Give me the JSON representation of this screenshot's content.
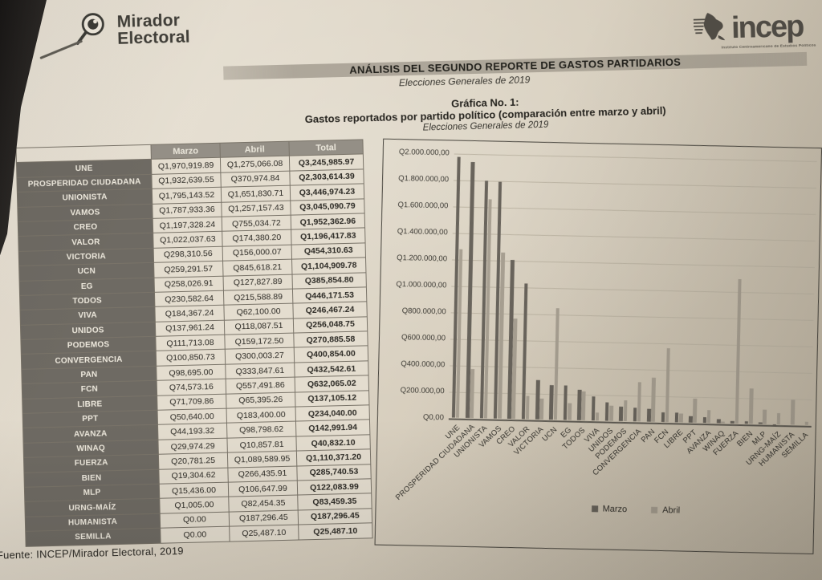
{
  "header": {
    "mirador": {
      "line1": "Mirador",
      "line2": "Electoral"
    },
    "incep": {
      "name": "incep",
      "tagline": "Instituto Centroamericano de Estudios Políticos"
    },
    "title": "ANÁLISIS DEL SEGUNDO REPORTE DE GASTOS PARTIDARIOS",
    "subtitle": "Elecciones Generales de 2019"
  },
  "figure": {
    "number": "Gráfica No. 1:",
    "title": "Gastos reportados por partido político (comparación entre marzo y abril)",
    "subtitle": "Elecciones Generales de 2019"
  },
  "source": "Fuente: INCEP/Mirador Electoral, 2019",
  "icons": {
    "mirador_logo": "magnifier-eye-icon",
    "incep_logo": "central-america-map-icon"
  },
  "colors": {
    "paper": "#ddd5c6",
    "bar_marzo": "#69645c",
    "bar_abril": "#a8a092",
    "table_party_bg": "#6e6a63",
    "table_header_bg": "#948f86"
  },
  "table": {
    "headers": [
      "",
      "Marzo",
      "Abril",
      "Total"
    ],
    "rows": [
      {
        "party": "UNE",
        "marzo": "Q1,970,919.89",
        "abril": "Q1,275,066.08",
        "total": "Q3,245,985.97"
      },
      {
        "party": "PROSPERIDAD CIUDADANA",
        "marzo": "Q1,932,639.55",
        "abril": "Q370,974.84",
        "total": "Q2,303,614.39"
      },
      {
        "party": "UNIONISTA",
        "marzo": "Q1,795,143.52",
        "abril": "Q1,651,830.71",
        "total": "Q3,446,974.23"
      },
      {
        "party": "VAMOS",
        "marzo": "Q1,787,933.36",
        "abril": "Q1,257,157.43",
        "total": "Q3,045,090.79"
      },
      {
        "party": "CREO",
        "marzo": "Q1,197,328.24",
        "abril": "Q755,034.72",
        "total": "Q1,952,362.96"
      },
      {
        "party": "VALOR",
        "marzo": "Q1,022,037.63",
        "abril": "Q174,380.20",
        "total": "Q1,196,417.83"
      },
      {
        "party": "VICTORIA",
        "marzo": "Q298,310.56",
        "abril": "Q156,000.07",
        "total": "Q454,310.63"
      },
      {
        "party": "UCN",
        "marzo": "Q259,291.57",
        "abril": "Q845,618.21",
        "total": "Q1,104,909.78"
      },
      {
        "party": "EG",
        "marzo": "Q258,026.91",
        "abril": "Q127,827.89",
        "total": "Q385,854.80"
      },
      {
        "party": "TODOS",
        "marzo": "Q230,582.64",
        "abril": "Q215,588.89",
        "total": "Q446,171.53"
      },
      {
        "party": "VIVA",
        "marzo": "Q184,367.24",
        "abril": "Q62,100.00",
        "total": "Q246,467.24"
      },
      {
        "party": "UNIDOS",
        "marzo": "Q137,961.24",
        "abril": "Q118,087.51",
        "total": "Q256,048.75"
      },
      {
        "party": "PODEMOS",
        "marzo": "Q111,713.08",
        "abril": "Q159,172.50",
        "total": "Q270,885.58"
      },
      {
        "party": "CONVERGENCIA",
        "marzo": "Q100,850.73",
        "abril": "Q300,003.27",
        "total": "Q400,854.00"
      },
      {
        "party": "PAN",
        "marzo": "Q98,695.00",
        "abril": "Q333,847.61",
        "total": "Q432,542.61"
      },
      {
        "party": "FCN",
        "marzo": "Q74,573.16",
        "abril": "Q557,491.86",
        "total": "Q632,065.02"
      },
      {
        "party": "LIBRE",
        "marzo": "Q71,709.86",
        "abril": "Q65,395.26",
        "total": "Q137,105.12"
      },
      {
        "party": "PPT",
        "marzo": "Q50,640.00",
        "abril": "Q183,400.00",
        "total": "Q234,040.00"
      },
      {
        "party": "AVANZA",
        "marzo": "Q44,193.32",
        "abril": "Q98,798.62",
        "total": "Q142,991.94"
      },
      {
        "party": "WINAQ",
        "marzo": "Q29,974.29",
        "abril": "Q10,857.81",
        "total": "Q40,832.10"
      },
      {
        "party": "FUERZA",
        "marzo": "Q20,781.25",
        "abril": "Q1,089,589.95",
        "total": "Q1,110,371.20"
      },
      {
        "party": "BIEN",
        "marzo": "Q19,304.62",
        "abril": "Q266,435.91",
        "total": "Q285,740.53"
      },
      {
        "party": "MLP",
        "marzo": "Q15,436.00",
        "abril": "Q106,647.99",
        "total": "Q122,083.99"
      },
      {
        "party": "URNG-MAÍZ",
        "marzo": "Q1,005.00",
        "abril": "Q82,454.35",
        "total": "Q83,459.35"
      },
      {
        "party": "HUMANISTA",
        "marzo": "Q0.00",
        "abril": "Q187,296.45",
        "total": "Q187,296.45"
      },
      {
        "party": "SEMILLA",
        "marzo": "Q0.00",
        "abril": "Q25,487.10",
        "total": "Q25,487.10"
      }
    ]
  },
  "chart_data": {
    "type": "bar",
    "title": "Gastos reportados por partido político (comparación entre marzo y abril)",
    "xlabel": "",
    "ylabel": "",
    "ylim": [
      0,
      2000000
    ],
    "grid": true,
    "legend_position": "bottom",
    "y_ticks": [
      "Q2.000.000,00",
      "Q1.800.000,00",
      "Q1.600.000,00",
      "Q1.400.000,00",
      "Q1.200.000,00",
      "Q1.000.000,00",
      "Q800.000,00",
      "Q600.000,00",
      "Q400.000,00",
      "Q200.000,00",
      "Q0,00"
    ],
    "categories": [
      "UNE",
      "PROSPERIDAD CIUDADANA",
      "UNIONISTA",
      "VAMOS",
      "CREO",
      "VALOR",
      "VICTORIA",
      "UCN",
      "EG",
      "TODOS",
      "VIVA",
      "UNIDOS",
      "PODEMOS",
      "CONVERGENCIA",
      "PAN",
      "FCN",
      "LIBRE",
      "PPT",
      "AVANZA",
      "WINAQ",
      "FUERZA",
      "BIEN",
      "MLP",
      "URNG-MAÍZ",
      "HUMANISTA",
      "SEMILLA"
    ],
    "series": [
      {
        "name": "Marzo",
        "values": [
          1970919.89,
          1932639.55,
          1795143.52,
          1787933.36,
          1197328.24,
          1022037.63,
          298310.56,
          259291.57,
          258026.91,
          230582.64,
          184367.24,
          137961.24,
          111713.08,
          100850.73,
          98695.0,
          74573.16,
          71709.86,
          50640.0,
          44193.32,
          29974.29,
          20781.25,
          19304.62,
          15436.0,
          1005.0,
          0.0,
          0.0
        ]
      },
      {
        "name": "Abril",
        "values": [
          1275066.08,
          370974.84,
          1651830.71,
          1257157.43,
          755034.72,
          174380.2,
          156000.07,
          845618.21,
          127827.89,
          215588.89,
          62100.0,
          118087.51,
          159172.5,
          300003.27,
          333847.61,
          557491.86,
          65395.26,
          183400.0,
          98798.62,
          10857.81,
          1089589.95,
          266435.91,
          106647.99,
          82454.35,
          187296.45,
          25487.1
        ]
      }
    ]
  }
}
